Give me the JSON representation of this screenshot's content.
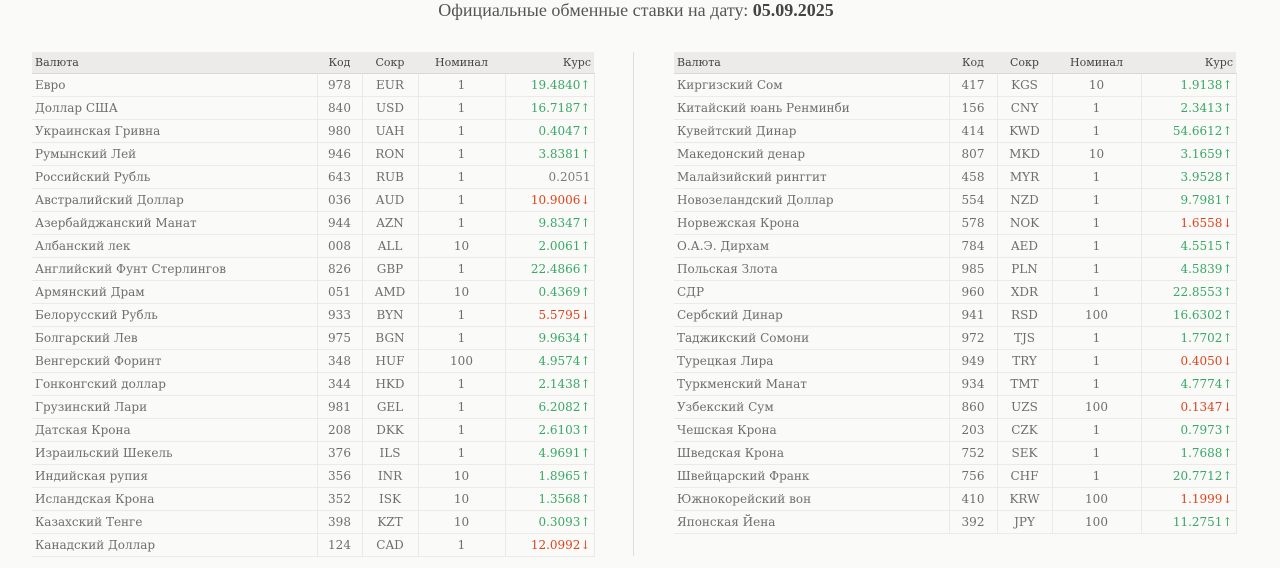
{
  "title": {
    "text": "Официальные обменные ставки на дату:",
    "date": "05.09.2025"
  },
  "columns": {
    "name": "Валюта",
    "code": "Код",
    "abbr": "Сокр",
    "nominal": "Номинал",
    "rate": "Курс"
  },
  "colors": {
    "up": "#3aa866",
    "down": "#e0441c",
    "flat": "#7a7a7a",
    "header_bg": "#ecebe7"
  },
  "left_rows": [
    {
      "name": "Евро",
      "code": "978",
      "abbr": "EUR",
      "nominal": "1",
      "rate": "19.4840↑",
      "trend": "up"
    },
    {
      "name": "Доллар США",
      "code": "840",
      "abbr": "USD",
      "nominal": "1",
      "rate": "16.7187↑",
      "trend": "up"
    },
    {
      "name": "Украинская Гривна",
      "code": "980",
      "abbr": "UAH",
      "nominal": "1",
      "rate": "0.4047↑",
      "trend": "up"
    },
    {
      "name": "Румынский Лей",
      "code": "946",
      "abbr": "RON",
      "nominal": "1",
      "rate": "3.8381↑",
      "trend": "up"
    },
    {
      "name": "Российский Рубль",
      "code": "643",
      "abbr": "RUB",
      "nominal": "1",
      "rate": "0.2051",
      "trend": "flat"
    },
    {
      "name": "Австралийский Доллар",
      "code": "036",
      "abbr": "AUD",
      "nominal": "1",
      "rate": "10.9006↓",
      "trend": "down"
    },
    {
      "name": "Азербайджанский Манат",
      "code": "944",
      "abbr": "AZN",
      "nominal": "1",
      "rate": "9.8347↑",
      "trend": "up"
    },
    {
      "name": "Албанский лек",
      "code": "008",
      "abbr": "ALL",
      "nominal": "10",
      "rate": "2.0061↑",
      "trend": "up"
    },
    {
      "name": "Английский Фунт Стерлингов",
      "code": "826",
      "abbr": "GBP",
      "nominal": "1",
      "rate": "22.4866↑",
      "trend": "up"
    },
    {
      "name": "Армянский Драм",
      "code": "051",
      "abbr": "AMD",
      "nominal": "10",
      "rate": "0.4369↑",
      "trend": "up"
    },
    {
      "name": "Белорусский Рубль",
      "code": "933",
      "abbr": "BYN",
      "nominal": "1",
      "rate": "5.5795↓",
      "trend": "down"
    },
    {
      "name": "Болгарский Лев",
      "code": "975",
      "abbr": "BGN",
      "nominal": "1",
      "rate": "9.9634↑",
      "trend": "up"
    },
    {
      "name": "Венгерский Форинт",
      "code": "348",
      "abbr": "HUF",
      "nominal": "100",
      "rate": "4.9574↑",
      "trend": "up"
    },
    {
      "name": "Гонконгский доллар",
      "code": "344",
      "abbr": "HKD",
      "nominal": "1",
      "rate": "2.1438↑",
      "trend": "up"
    },
    {
      "name": "Грузинский Лари",
      "code": "981",
      "abbr": "GEL",
      "nominal": "1",
      "rate": "6.2082↑",
      "trend": "up"
    },
    {
      "name": "Датская Крона",
      "code": "208",
      "abbr": "DKK",
      "nominal": "1",
      "rate": "2.6103↑",
      "trend": "up"
    },
    {
      "name": "Израильский Шекель",
      "code": "376",
      "abbr": "ILS",
      "nominal": "1",
      "rate": "4.9691↑",
      "trend": "up"
    },
    {
      "name": "Индийская рупия",
      "code": "356",
      "abbr": "INR",
      "nominal": "10",
      "rate": "1.8965↑",
      "trend": "up"
    },
    {
      "name": "Исландская Крона",
      "code": "352",
      "abbr": "ISK",
      "nominal": "10",
      "rate": "1.3568↑",
      "trend": "up"
    },
    {
      "name": "Казахский Тенге",
      "code": "398",
      "abbr": "KZT",
      "nominal": "10",
      "rate": "0.3093↑",
      "trend": "up"
    },
    {
      "name": "Канадский Доллар",
      "code": "124",
      "abbr": "CAD",
      "nominal": "1",
      "rate": "12.0992↓",
      "trend": "down"
    }
  ],
  "right_rows": [
    {
      "name": "Киргизский Сом",
      "code": "417",
      "abbr": "KGS",
      "nominal": "10",
      "rate": "1.9138↑",
      "trend": "up"
    },
    {
      "name": "Китайский юань Ренминби",
      "code": "156",
      "abbr": "CNY",
      "nominal": "1",
      "rate": "2.3413↑",
      "trend": "up"
    },
    {
      "name": "Кувейтский Динар",
      "code": "414",
      "abbr": "KWD",
      "nominal": "1",
      "rate": "54.6612↑",
      "trend": "up"
    },
    {
      "name": "Македонский денар",
      "code": "807",
      "abbr": "MKD",
      "nominal": "10",
      "rate": "3.1659↑",
      "trend": "up"
    },
    {
      "name": "Малайзийский ринггит",
      "code": "458",
      "abbr": "MYR",
      "nominal": "1",
      "rate": "3.9528↑",
      "trend": "up"
    },
    {
      "name": "Новозеландский Доллар",
      "code": "554",
      "abbr": "NZD",
      "nominal": "1",
      "rate": "9.7981↑",
      "trend": "up"
    },
    {
      "name": "Норвежская Крона",
      "code": "578",
      "abbr": "NOK",
      "nominal": "1",
      "rate": "1.6558↓",
      "trend": "down"
    },
    {
      "name": "О.А.Э. Дирхам",
      "code": "784",
      "abbr": "AED",
      "nominal": "1",
      "rate": "4.5515↑",
      "trend": "up"
    },
    {
      "name": "Польская Злота",
      "code": "985",
      "abbr": "PLN",
      "nominal": "1",
      "rate": "4.5839↑",
      "trend": "up"
    },
    {
      "name": "СДР",
      "code": "960",
      "abbr": "XDR",
      "nominal": "1",
      "rate": "22.8553↑",
      "trend": "up"
    },
    {
      "name": "Сербский Динар",
      "code": "941",
      "abbr": "RSD",
      "nominal": "100",
      "rate": "16.6302↑",
      "trend": "up"
    },
    {
      "name": "Таджикский Сомони",
      "code": "972",
      "abbr": "TJS",
      "nominal": "1",
      "rate": "1.7702↑",
      "trend": "up"
    },
    {
      "name": "Турецкая Лира",
      "code": "949",
      "abbr": "TRY",
      "nominal": "1",
      "rate": "0.4050↓",
      "trend": "down"
    },
    {
      "name": "Туркменский Манат",
      "code": "934",
      "abbr": "TMT",
      "nominal": "1",
      "rate": "4.7774↑",
      "trend": "up"
    },
    {
      "name": "Узбекский Сум",
      "code": "860",
      "abbr": "UZS",
      "nominal": "100",
      "rate": "0.1347↓",
      "trend": "down"
    },
    {
      "name": "Чешская Крона",
      "code": "203",
      "abbr": "CZK",
      "nominal": "1",
      "rate": "0.7973↑",
      "trend": "up"
    },
    {
      "name": "Шведская Крона",
      "code": "752",
      "abbr": "SEK",
      "nominal": "1",
      "rate": "1.7688↑",
      "trend": "up"
    },
    {
      "name": "Швейцарский Франк",
      "code": "756",
      "abbr": "CHF",
      "nominal": "1",
      "rate": "20.7712↑",
      "trend": "up"
    },
    {
      "name": "Южнокорейский вон",
      "code": "410",
      "abbr": "KRW",
      "nominal": "100",
      "rate": "1.1999↓",
      "trend": "down"
    },
    {
      "name": "Японская Йена",
      "code": "392",
      "abbr": "JPY",
      "nominal": "100",
      "rate": "11.2751↑",
      "trend": "up"
    }
  ]
}
